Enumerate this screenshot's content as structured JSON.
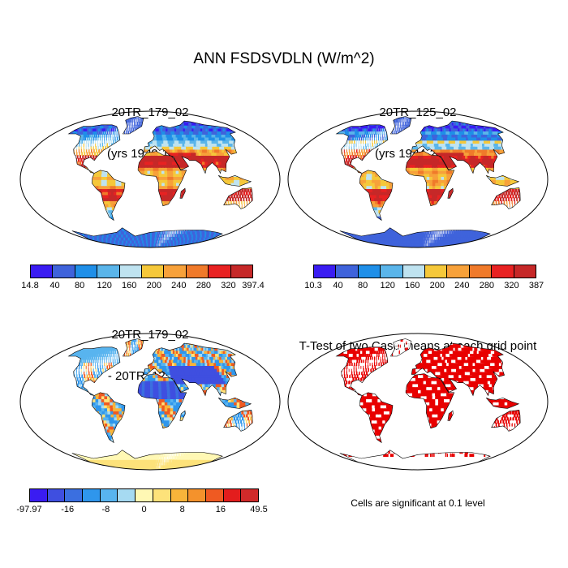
{
  "figure": {
    "title": "ANN FSDSVDLN (W/m^2)"
  },
  "panels": [
    {
      "id": "case1",
      "title_line1": "20TR_179_02",
      "title_line2": "(yrs 1930-1949)",
      "field": "absolute",
      "colorbar": {
        "tick_labels": [
          "14.8",
          "40",
          "80",
          "120",
          "160",
          "200",
          "240",
          "280",
          "320",
          "397.4"
        ],
        "colors": [
          "#3a1cf2",
          "#3f63db",
          "#1f8fe8",
          "#5ab5ea",
          "#bfe3f0",
          "#f5c83a",
          "#f7a13a",
          "#f07a2a",
          "#e82222",
          "#c62828"
        ]
      }
    },
    {
      "id": "case2",
      "title_line1": "20TR_125_02",
      "title_line2": "(yrs 1984-2003)",
      "field": "absolute",
      "colorbar": {
        "tick_labels": [
          "10.3",
          "40",
          "80",
          "120",
          "160",
          "200",
          "240",
          "280",
          "320",
          "387"
        ],
        "colors": [
          "#3a1cf2",
          "#3f63db",
          "#1f8fe8",
          "#5ab5ea",
          "#bfe3f0",
          "#f5c83a",
          "#f7a13a",
          "#f07a2a",
          "#e82222",
          "#c62828"
        ]
      }
    },
    {
      "id": "difference",
      "title_line1": "20TR_179_02",
      "title_line2": "- 20TR_125_02",
      "field": "difference",
      "colorbar": {
        "tick_labels": [
          "-97.97",
          "",
          "-16",
          "",
          "-8",
          "",
          "0",
          "",
          "8",
          "",
          "16",
          "",
          "49.5"
        ],
        "colors": [
          "#3a1cf2",
          "#3f4fe0",
          "#3b6fe0",
          "#2f96ec",
          "#58b4ef",
          "#a6daf2",
          "#fff8b4",
          "#fde27a",
          "#f8b43a",
          "#f4922c",
          "#ef5a22",
          "#e31d1d",
          "#d02a2a"
        ]
      }
    },
    {
      "id": "ttest",
      "title_line1": "T-Test of two Case means at each grid point",
      "title_line2": "",
      "field": "significance",
      "note": "Cells are significant at 0.1 level",
      "significance_color": "#e80000"
    }
  ]
}
